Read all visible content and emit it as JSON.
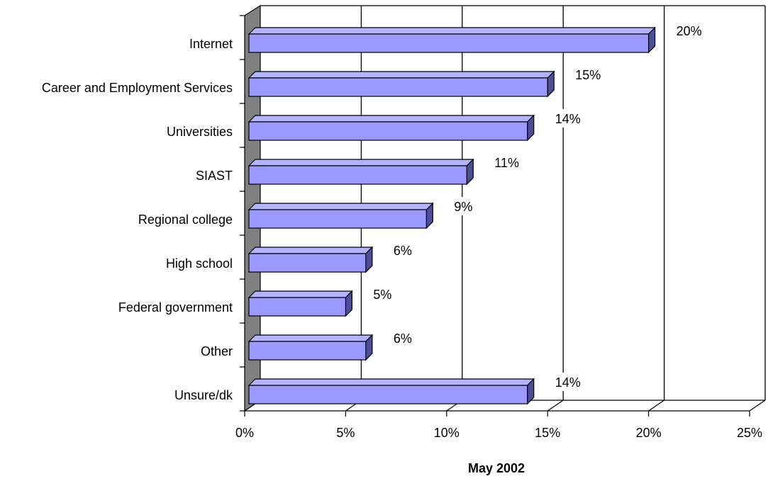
{
  "chart_data": {
    "type": "bar",
    "orientation": "horizontal",
    "three_d": true,
    "categories": [
      "Internet",
      "Career and Employment Services",
      "Universities",
      "SIAST",
      "Regional college",
      "High school",
      "Federal government",
      "Other",
      "Unsure/dk"
    ],
    "values": [
      20,
      15,
      14,
      11,
      9,
      6,
      5,
      6,
      14
    ],
    "data_labels": [
      "20%",
      "15%",
      "14%",
      "11%",
      "9%",
      "6%",
      "5%",
      "6%",
      "14%"
    ],
    "xlabel": "May 2002",
    "xlim": [
      0,
      25
    ],
    "x_ticks": [
      0,
      5,
      10,
      15,
      20,
      25
    ],
    "x_tick_labels": [
      "0%",
      "5%",
      "10%",
      "15%",
      "20%",
      "25%"
    ],
    "gridlines": "vertical",
    "legend": "none",
    "colors": {
      "bar_front": "#9999ff",
      "bar_top": "#b3b3ff",
      "bar_side": "#4d4d99",
      "wall": "#808080",
      "gridline": "#000000"
    }
  }
}
